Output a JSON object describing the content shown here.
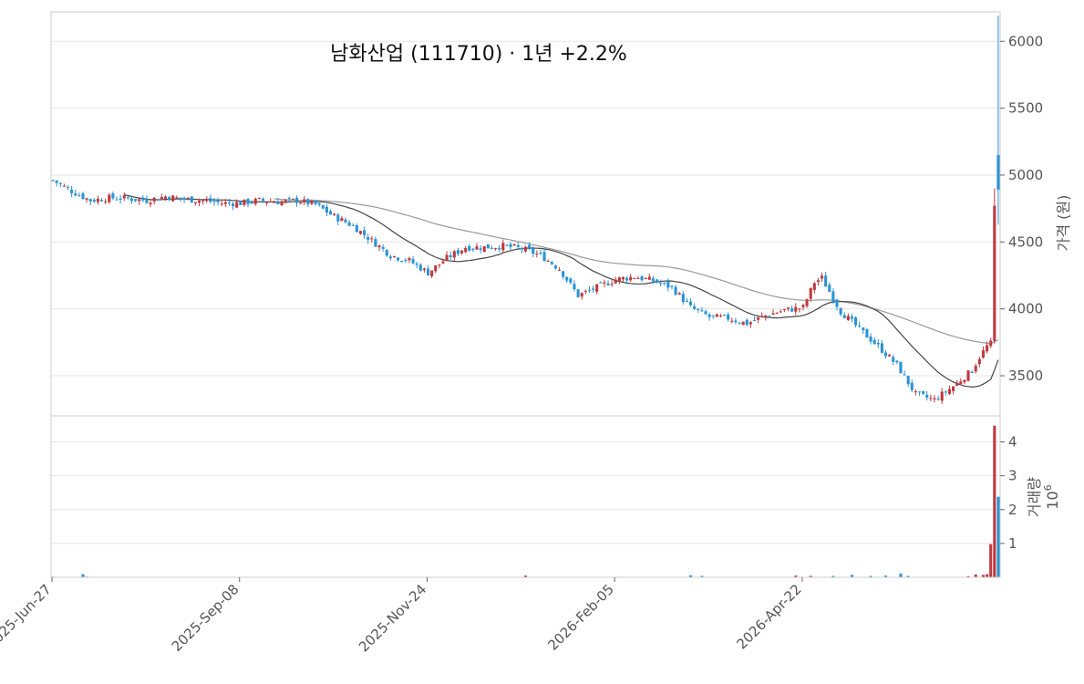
{
  "chart_data": {
    "type": "candlestick",
    "title": "남화산업 (111710)  ·  1년 +2.2%",
    "price_axis": {
      "label": "가격 (원)",
      "ylim": [
        3200,
        6220
      ],
      "ticks": [
        3500,
        4000,
        4500,
        5000,
        5500,
        6000
      ],
      "side": "right"
    },
    "volume_axis": {
      "label": "거래량",
      "scale_label": "10",
      "scale_exp": "6",
      "ylim": [
        0,
        4.5
      ],
      "ticks": [
        1,
        2,
        3,
        4
      ],
      "tick_labels": [
        "1",
        "2",
        "3",
        "4"
      ],
      "side": "right"
    },
    "x_axis": {
      "tick_labels": [
        "2025-Jun-27",
        "2025-Sep-08",
        "2025-Nov-24",
        "2026-Feb-05",
        "2026-Apr-22"
      ],
      "tick_positions": [
        0,
        50,
        100,
        150,
        200
      ]
    },
    "grid": true,
    "colors": {
      "up": "#c0393e",
      "down": "#2a93d5",
      "ma_short": "#444444",
      "ma_long": "#999999",
      "frame": "#cccccc",
      "grid": "#e5e5e5"
    },
    "price_keys": [
      [
        0,
        4960
      ],
      [
        5,
        4880
      ],
      [
        10,
        4810
      ],
      [
        15,
        4830
      ],
      [
        20,
        4825
      ],
      [
        25,
        4810
      ],
      [
        30,
        4840
      ],
      [
        35,
        4820
      ],
      [
        40,
        4810
      ],
      [
        45,
        4790
      ],
      [
        50,
        4790
      ],
      [
        55,
        4810
      ],
      [
        60,
        4800
      ],
      [
        65,
        4810
      ],
      [
        70,
        4780
      ],
      [
        75,
        4690
      ],
      [
        80,
        4620
      ],
      [
        85,
        4510
      ],
      [
        90,
        4400
      ],
      [
        95,
        4360
      ],
      [
        100,
        4270
      ],
      [
        105,
        4380
      ],
      [
        110,
        4460
      ],
      [
        115,
        4460
      ],
      [
        120,
        4470
      ],
      [
        125,
        4450
      ],
      [
        130,
        4400
      ],
      [
        135,
        4300
      ],
      [
        140,
        4100
      ],
      [
        145,
        4160
      ],
      [
        150,
        4220
      ],
      [
        155,
        4240
      ],
      [
        160,
        4210
      ],
      [
        165,
        4160
      ],
      [
        170,
        4010
      ],
      [
        175,
        3940
      ],
      [
        180,
        3930
      ],
      [
        185,
        3890
      ],
      [
        190,
        3950
      ],
      [
        195,
        3990
      ],
      [
        200,
        4010
      ],
      [
        203,
        4200
      ],
      [
        205,
        4230
      ],
      [
        210,
        3980
      ],
      [
        215,
        3850
      ],
      [
        220,
        3720
      ],
      [
        225,
        3580
      ],
      [
        230,
        3360
      ],
      [
        235,
        3320
      ],
      [
        240,
        3420
      ],
      [
        245,
        3540
      ],
      [
        247,
        3640
      ],
      [
        249,
        3720
      ],
      [
        250,
        3740
      ],
      [
        251,
        4770
      ],
      [
        252,
        4890
      ]
    ],
    "overrides": {
      "251": {
        "o": 3760,
        "c": 4770,
        "h": 4900,
        "l": 3740
      },
      "252": {
        "o": 5150,
        "c": 4890,
        "h": 6190,
        "l": 4630
      }
    },
    "volume_keys": [
      [
        0,
        0.02
      ],
      [
        8,
        0.09
      ],
      [
        9,
        0.02
      ],
      [
        126,
        0.05
      ],
      [
        170,
        0.06
      ],
      [
        173,
        0.04
      ],
      [
        198,
        0.05
      ],
      [
        202,
        0.04
      ],
      [
        208,
        0.04
      ],
      [
        213,
        0.07
      ],
      [
        218,
        0.04
      ],
      [
        222,
        0.05
      ],
      [
        226,
        0.11
      ],
      [
        228,
        0.04
      ],
      [
        244,
        0.03
      ],
      [
        246,
        0.08
      ],
      [
        248,
        0.07
      ],
      [
        249,
        0.09
      ],
      [
        250,
        0.98
      ],
      [
        251,
        4.48
      ],
      [
        252,
        2.38
      ]
    ],
    "ma_short_period": 20,
    "ma_long_period": 60,
    "n_bars": 253
  }
}
